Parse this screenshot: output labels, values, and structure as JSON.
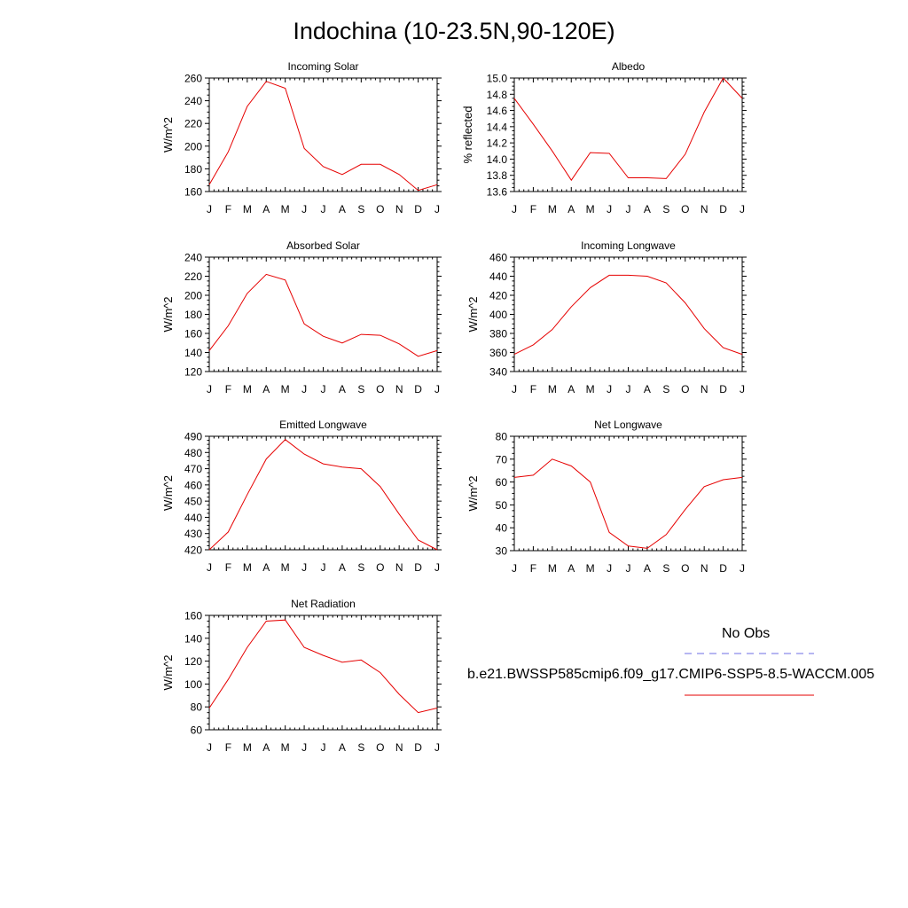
{
  "title": "Indochina (10-23.5N,90-120E)",
  "legend": {
    "obs_label": "No Obs",
    "obs_color": "#6e6ee6",
    "model_label": "b.e21.BWSSP585cmip6.f09_g17.CMIP6-SSP5-8.5-WACCM.005",
    "model_color": "#e60000"
  },
  "chart_data": [
    {
      "type": "line",
      "title": "Incoming Solar",
      "ylabel": "W/m^2",
      "categories": [
        "J",
        "F",
        "M",
        "A",
        "M",
        "J",
        "J",
        "A",
        "S",
        "O",
        "N",
        "D",
        "J"
      ],
      "ylim": [
        160,
        260
      ],
      "yticks": [
        160,
        180,
        200,
        220,
        240,
        260
      ],
      "series": [
        {
          "values": [
            166,
            195,
            235,
            257,
            251,
            198,
            182,
            175,
            184,
            184,
            175,
            161,
            166
          ]
        }
      ]
    },
    {
      "type": "line",
      "title": "Albedo",
      "ylabel": "% reflected",
      "categories": [
        "J",
        "F",
        "M",
        "A",
        "M",
        "J",
        "J",
        "A",
        "S",
        "O",
        "N",
        "D",
        "J"
      ],
      "ylim": [
        13.6,
        15.0
      ],
      "yticks": [
        "13.6",
        "13.8",
        "14.0",
        "14.2",
        "14.4",
        "14.6",
        "14.8",
        "15.0"
      ],
      "series": [
        {
          "values": [
            14.75,
            14.43,
            14.1,
            13.74,
            14.08,
            14.07,
            13.77,
            13.77,
            13.76,
            14.06,
            14.58,
            15.0,
            14.75
          ]
        }
      ]
    },
    {
      "type": "line",
      "title": "Absorbed Solar",
      "ylabel": "W/m^2",
      "categories": [
        "J",
        "F",
        "M",
        "A",
        "M",
        "J",
        "J",
        "A",
        "S",
        "O",
        "N",
        "D",
        "J"
      ],
      "ylim": [
        120,
        240
      ],
      "yticks": [
        120,
        140,
        160,
        180,
        200,
        220,
        240
      ],
      "series": [
        {
          "values": [
            142,
            168,
            202,
            222,
            216,
            170,
            157,
            150,
            159,
            158,
            149,
            136,
            142
          ]
        }
      ]
    },
    {
      "type": "line",
      "title": "Incoming Longwave",
      "ylabel": "W/m^2",
      "categories": [
        "J",
        "F",
        "M",
        "A",
        "M",
        "J",
        "J",
        "A",
        "S",
        "O",
        "N",
        "D",
        "J"
      ],
      "ylim": [
        340,
        460
      ],
      "yticks": [
        340,
        360,
        380,
        400,
        420,
        440,
        460
      ],
      "series": [
        {
          "values": [
            358,
            368,
            384,
            408,
            428,
            441,
            441,
            440,
            433,
            412,
            385,
            365,
            358
          ]
        }
      ]
    },
    {
      "type": "line",
      "title": "Emitted Longwave",
      "ylabel": "W/m^2",
      "categories": [
        "J",
        "F",
        "M",
        "A",
        "M",
        "J",
        "J",
        "A",
        "S",
        "O",
        "N",
        "D",
        "J"
      ],
      "ylim": [
        420,
        490
      ],
      "yticks": [
        420,
        430,
        440,
        450,
        460,
        470,
        480,
        490
      ],
      "series": [
        {
          "values": [
            420,
            431,
            454,
            476,
            488,
            479,
            473,
            471,
            470,
            459,
            442,
            426,
            420
          ]
        }
      ]
    },
    {
      "type": "line",
      "title": "Net Longwave",
      "ylabel": "W/m^2",
      "categories": [
        "J",
        "F",
        "M",
        "A",
        "M",
        "J",
        "J",
        "A",
        "S",
        "O",
        "N",
        "D",
        "J"
      ],
      "ylim": [
        30,
        80
      ],
      "yticks": [
        30,
        40,
        50,
        60,
        70,
        80
      ],
      "series": [
        {
          "values": [
            62,
            63,
            70,
            67,
            60,
            38,
            32,
            31,
            37,
            48,
            58,
            61,
            62
          ]
        }
      ]
    },
    {
      "type": "line",
      "title": "Net Radiation",
      "ylabel": "W/m^2",
      "categories": [
        "J",
        "F",
        "M",
        "A",
        "M",
        "J",
        "J",
        "A",
        "S",
        "O",
        "N",
        "D",
        "J"
      ],
      "ylim": [
        60,
        160
      ],
      "yticks": [
        60,
        80,
        100,
        120,
        140,
        160
      ],
      "series": [
        {
          "values": [
            79,
            104,
            132,
            155,
            156,
            132,
            125,
            119,
            121,
            110,
            91,
            75,
            79
          ]
        }
      ]
    }
  ]
}
